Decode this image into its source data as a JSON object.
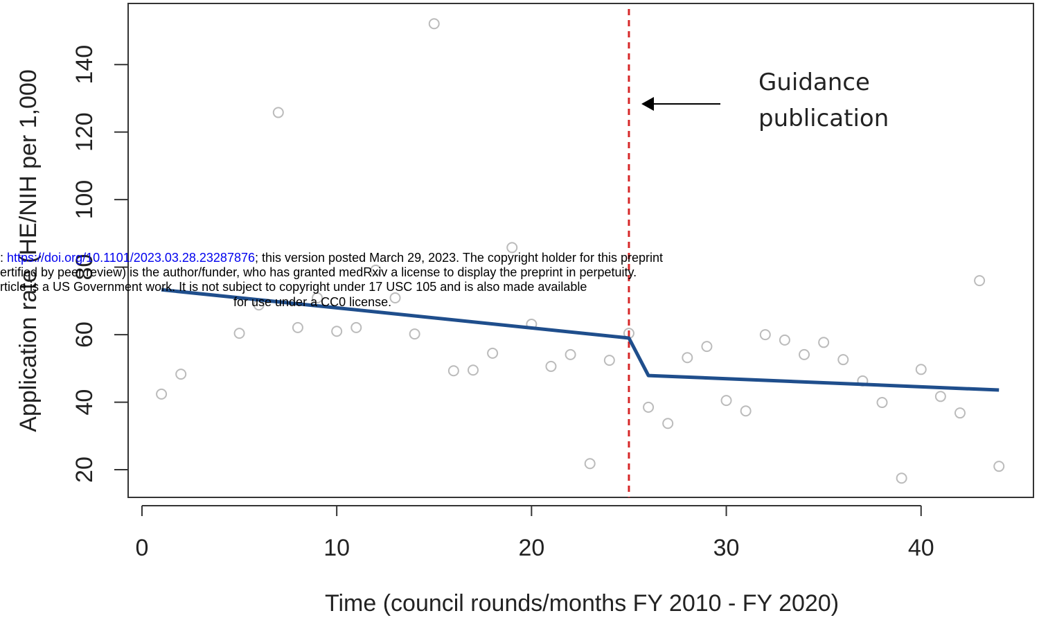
{
  "chart_data": {
    "type": "scatter",
    "xlabel": "Time (council rounds/months FY 2010 - FY 2020)",
    "ylabel": "Application rate (HE/NIH per 1,000",
    "x": [
      1,
      2,
      5,
      6,
      7,
      8,
      9,
      10,
      11,
      12,
      13,
      14,
      15,
      16,
      17,
      18,
      19,
      20,
      21,
      22,
      23,
      24,
      25,
      26,
      27,
      28,
      29,
      30,
      31,
      32,
      33,
      34,
      35,
      36,
      37,
      38,
      39,
      40,
      41,
      42,
      43,
      44
    ],
    "values": [
      42.4,
      48.3,
      60.4,
      68.8,
      125.8,
      62.1,
      70.9,
      61.0,
      62.1,
      79.1,
      70.9,
      60.2,
      152.1,
      49.3,
      49.5,
      54.5,
      85.8,
      63.1,
      50.6,
      54.1,
      21.8,
      52.4,
      60.4,
      38.5,
      33.7,
      53.2,
      56.5,
      40.5,
      37.4,
      60.0,
      58.4,
      54.1,
      57.7,
      52.6,
      46.3,
      39.9,
      17.5,
      49.7,
      41.7,
      36.8,
      76.0,
      21.0
    ],
    "color": "#bbbbbb",
    "fit": {
      "x": [
        1,
        25,
        26,
        44
      ],
      "values": [
        73.3,
        59.0,
        47.9,
        43.6
      ],
      "color": "#1f4e8c"
    },
    "vline": {
      "x": 25,
      "color": "#d62728"
    },
    "annotation": [
      "Guidance",
      "publication"
    ],
    "xlim": [
      -0.71,
      45.77
    ],
    "ylim": [
      11.8,
      158.1
    ],
    "xticks": [
      0,
      10,
      20,
      30,
      40
    ],
    "yticks": [
      20,
      40,
      60,
      80,
      100,
      120,
      140
    ]
  },
  "notice": {
    "line1": [
      ": ",
      "https://doi.org/10.1101/2023.03.28.23287876",
      "; this version posted March 29, 2023. The copyright holder for this preprint"
    ],
    "line2": "ertified by peer review) is the author/funder, who has granted medRxiv a license to display the preprint in perpetuity.",
    "line3": "rticle is a US Government work. It is not subject to copyright under 17 USC 105 and is also made available",
    "line4": "for use under a CC0 license."
  }
}
